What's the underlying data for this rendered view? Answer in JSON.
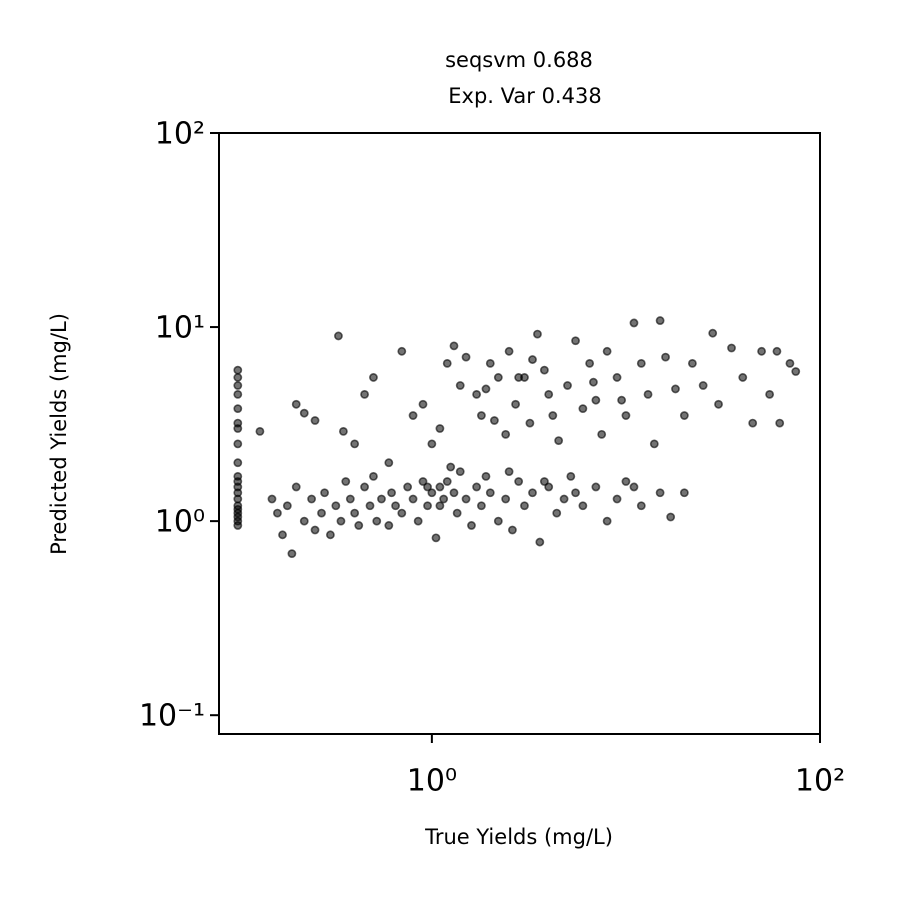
{
  "chart_data": {
    "type": "scatter",
    "title": "seqsvm 0.688",
    "subtitle": "Exp. Var 0.438",
    "xlabel": "True Yields (mg/L)",
    "ylabel": "Predicted Yields (mg/L)",
    "xscale": "log",
    "yscale": "log",
    "color": "#000000",
    "xlim": [
      0.08,
      100
    ],
    "ylim": [
      0.08,
      100
    ],
    "xticks": [
      {
        "value": 1,
        "label": "10⁰"
      },
      {
        "value": 100,
        "label": "10²"
      }
    ],
    "yticks": [
      {
        "value": 0.1,
        "label": "10⁻¹"
      },
      {
        "value": 1,
        "label": "10⁰"
      },
      {
        "value": 10,
        "label": "10¹"
      },
      {
        "value": 100,
        "label": "10²"
      }
    ],
    "x": [
      0.1,
      0.1,
      0.1,
      0.1,
      0.1,
      0.1,
      0.1,
      0.1,
      0.1,
      0.1,
      0.1,
      0.1,
      0.1,
      0.1,
      0.1,
      0.1,
      0.1,
      0.1,
      0.1,
      0.1,
      0.15,
      0.16,
      0.17,
      0.18,
      0.19,
      0.2,
      0.22,
      0.24,
      0.25,
      0.27,
      0.28,
      0.3,
      0.32,
      0.34,
      0.36,
      0.38,
      0.4,
      0.42,
      0.45,
      0.48,
      0.5,
      0.52,
      0.55,
      0.6,
      0.62,
      0.65,
      0.7,
      0.75,
      0.8,
      0.85,
      0.9,
      0.95,
      1.0,
      1.05,
      1.1,
      1.15,
      1.2,
      1.3,
      1.35,
      1.4,
      1.5,
      1.6,
      1.7,
      1.8,
      1.9,
      2.0,
      2.2,
      2.4,
      2.6,
      2.8,
      3.0,
      3.3,
      3.6,
      4.0,
      4.4,
      4.8,
      5.2,
      6.0,
      7.0,
      8.0,
      9.0,
      10,
      12,
      15,
      17,
      20,
      1.25,
      1.1,
      0.95,
      2.5,
      5.5,
      3.8,
      11,
      0.2,
      0.22,
      0.25,
      0.13,
      0.35,
      0.4,
      0.45,
      0.5,
      0.33,
      0.7,
      0.6,
      0.8,
      0.9,
      1.0,
      1.1,
      1.2,
      1.3,
      1.4,
      1.5,
      1.7,
      1.8,
      2.0,
      2.2,
      2.4,
      2.5,
      2.7,
      3.0,
      3.2,
      3.5,
      3.8,
      4.0,
      4.5,
      5,
      5.5,
      6,
      6.5,
      7,
      7.5,
      8,
      9,
      10,
      11,
      12,
      13,
      14,
      15,
      16,
      18,
      20,
      22,
      25,
      28,
      30,
      35,
      40,
      45,
      50,
      55,
      60,
      62,
      70,
      75,
      2.8,
      4.2,
      3.3,
      1.9,
      6.8,
      9.5,
      2.1
    ],
    "values": [
      0.95,
      1.0,
      1.05,
      1.1,
      1.15,
      1.2,
      1.3,
      1.4,
      1.5,
      1.6,
      1.7,
      2.0,
      2.5,
      3.0,
      3.2,
      3.8,
      4.5,
      5.0,
      5.5,
      6.0,
      1.3,
      1.1,
      0.85,
      1.2,
      0.68,
      1.5,
      1.0,
      1.3,
      0.9,
      1.1,
      1.4,
      0.85,
      1.2,
      1.0,
      1.6,
      1.3,
      1.1,
      0.95,
      1.5,
      1.2,
      1.7,
      1.0,
      1.3,
      0.95,
      1.4,
      1.2,
      1.1,
      1.5,
      1.3,
      1.0,
      1.6,
      1.2,
      1.4,
      0.82,
      1.5,
      1.3,
      1.6,
      1.4,
      1.1,
      1.8,
      1.3,
      0.95,
      1.5,
      1.2,
      1.7,
      1.4,
      1.0,
      1.3,
      0.9,
      1.6,
      1.2,
      1.4,
      0.78,
      1.5,
      1.1,
      1.3,
      1.7,
      1.2,
      1.5,
      1.0,
      1.3,
      1.6,
      1.2,
      1.4,
      1.05,
      1.4,
      1.9,
      1.2,
      1.5,
      1.8,
      1.4,
      1.6,
      1.5,
      4.0,
      3.6,
      3.3,
      2.9,
      2.9,
      2.5,
      4.5,
      5.5,
      9.0,
      7.5,
      2.0,
      3.5,
      4.0,
      2.5,
      3.0,
      6.5,
      8.0,
      5.0,
      7,
      4.5,
      3.5,
      6.5,
      5.5,
      2.8,
      7.5,
      4,
      5.5,
      3.2,
      9.2,
      6,
      4.5,
      2.6,
      5,
      8.5,
      3.8,
      6.5,
      4.2,
      2.8,
      7.5,
      5.5,
      3.5,
      10.5,
      6.5,
      4.5,
      2.5,
      10.8,
      7,
      4.8,
      3.5,
      6.5,
      5,
      9.3,
      4,
      7.8,
      5.5,
      3.2,
      7.5,
      4.5,
      7.5,
      3.2,
      6.5,
      5.9,
      5.5,
      3.5,
      6.8,
      4.8,
      5.2,
      4.2,
      3.3
    ]
  }
}
